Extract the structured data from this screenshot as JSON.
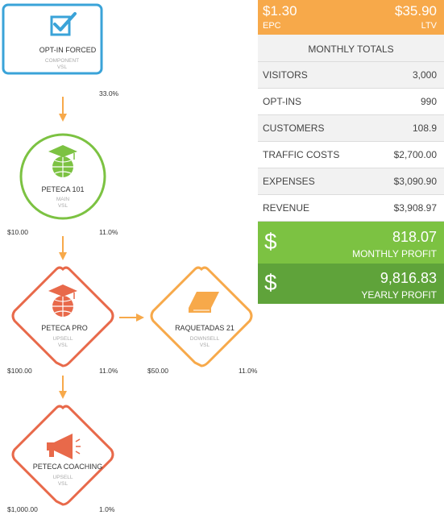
{
  "nodes": [
    {
      "id": "optin",
      "title": "OPT-IN FORCED",
      "sub1": "COMPONENT",
      "sub2": "VSL",
      "icon": "checkbox-icon",
      "color": "#3aa3d8",
      "percent": "33.0%",
      "price": ""
    },
    {
      "id": "peteca101",
      "title": "PETECA 101",
      "sub1": "MAIN",
      "sub2": "VSL",
      "icon": "graduation-globe-icon",
      "color": "#7cc242",
      "percent": "11.0%",
      "price": "$10.00"
    },
    {
      "id": "petecapro",
      "title": "PETECA PRO",
      "sub1": "UPSELL",
      "sub2": "VSL",
      "icon": "graduation-globe-icon",
      "color": "#e8694a",
      "percent": "11.0%",
      "price": "$100.00"
    },
    {
      "id": "raquetadas",
      "title": "RAQUETADAS 21",
      "sub1": "DOWNSELL",
      "sub2": "VSL",
      "icon": "book-icon",
      "color": "#f7a94a",
      "percent": "11.0%",
      "price": "$50.00"
    },
    {
      "id": "coaching",
      "title": "PETECA COACHING",
      "sub1": "UPSELL",
      "sub2": "VSL",
      "icon": "megaphone-icon",
      "color": "#e8694a",
      "percent": "1.0%",
      "price": "$1,000.00"
    }
  ],
  "colors": {
    "arrow": "#f7a94a",
    "orange": "#f7a94a",
    "green": "#7cc242",
    "dark_green": "#5fa33a",
    "row_bg": "#f2f2f2"
  },
  "panel": {
    "epc_value": "$1.30",
    "epc_label": "EPC",
    "ltv_value": "$35.90",
    "ltv_label": "LTV",
    "header": "MONTHLY TOTALS",
    "rows": [
      {
        "label": "VISITORS",
        "value": "3,000"
      },
      {
        "label": "OPT-INS",
        "value": "990"
      },
      {
        "label": "CUSTOMERS",
        "value": "108.9"
      },
      {
        "label": "TRAFFIC COSTS",
        "value": "$2,700.00"
      },
      {
        "label": "EXPENSES",
        "value": "$3,090.90"
      },
      {
        "label": "REVENUE",
        "value": "$3,908.97"
      }
    ],
    "monthly_profit": {
      "symbol": "$",
      "value": "818.07",
      "label": "MONTHLY PROFIT"
    },
    "yearly_profit": {
      "symbol": "$",
      "value": "9,816.83",
      "label": "YEARLY PROFIT"
    }
  }
}
